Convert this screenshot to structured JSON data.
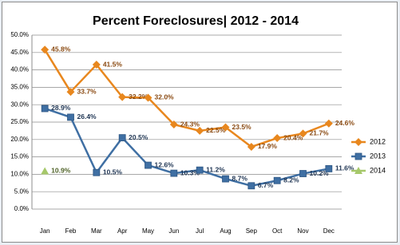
{
  "chart_data": {
    "type": "line",
    "title": "Percent Foreclosures| 2012 - 2014",
    "categories": [
      "Jan",
      "Feb",
      "Mar",
      "Apr",
      "May",
      "Jun",
      "Jul",
      "Aug",
      "Sep",
      "Oct",
      "Nov",
      "Dec"
    ],
    "series": [
      {
        "name": "2012",
        "color": "#e8871e",
        "label_color": "#8a4a12",
        "marker": "diamond",
        "values": [
          45.8,
          33.7,
          41.5,
          32.2,
          32.0,
          24.3,
          22.5,
          23.5,
          17.9,
          20.4,
          21.7,
          24.6
        ],
        "value_labels": [
          "45.8%",
          "33.7%",
          "41.5%",
          "32.2%",
          "32.0%",
          "24.3%",
          "22.5%",
          "23.5%",
          "17.9%",
          "20.4%",
          "21.7%",
          "24.6%"
        ]
      },
      {
        "name": "2013",
        "color": "#3f6fa3",
        "label_color": "#1f3553",
        "marker": "square",
        "values": [
          28.9,
          26.4,
          10.5,
          20.5,
          12.6,
          10.3,
          11.2,
          8.7,
          6.7,
          8.2,
          10.2,
          11.6
        ],
        "value_labels": [
          "28.9%",
          "26.4%",
          "10.5%",
          "20.5%",
          "12.6%",
          "10.3%",
          "11.2%",
          "8.7%",
          "6.7%",
          "8.2%",
          "10.2%",
          "11.6%"
        ]
      },
      {
        "name": "2014",
        "color": "#a6c86a",
        "label_color": "#4f6228",
        "marker": "triangle",
        "values": [
          10.9,
          null,
          null,
          null,
          null,
          null,
          null,
          null,
          null,
          null,
          null,
          null
        ],
        "value_labels": [
          "10.9%",
          null,
          null,
          null,
          null,
          null,
          null,
          null,
          null,
          null,
          null,
          null
        ]
      }
    ],
    "ylim": [
      0,
      50
    ],
    "yticks": [
      {
        "value": 0,
        "label": "0.0%"
      },
      {
        "value": 5,
        "label": "5.0%"
      },
      {
        "value": 10,
        "label": "10.0%"
      },
      {
        "value": 15,
        "label": "15.0%"
      },
      {
        "value": 20,
        "label": "20.0%"
      },
      {
        "value": 25,
        "label": "25.0%"
      },
      {
        "value": 30,
        "label": "30.0%"
      },
      {
        "value": 35,
        "label": "35.0%"
      },
      {
        "value": 40,
        "label": "40.0%"
      },
      {
        "value": 45,
        "label": "45.0%"
      },
      {
        "value": 50,
        "label": "50.0%"
      }
    ],
    "grid": true,
    "legend": "right"
  }
}
